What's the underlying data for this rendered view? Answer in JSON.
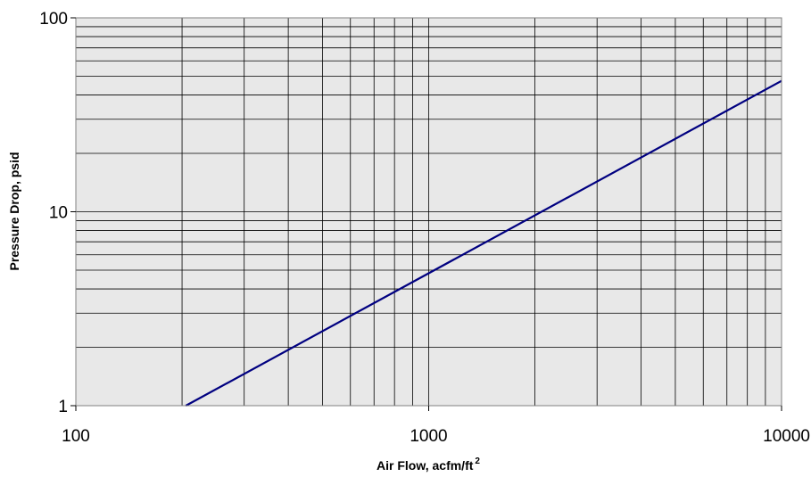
{
  "chart_data": {
    "type": "line",
    "title": "",
    "xlabel": "Air Flow, acfm/ft",
    "xlabel_superscript": "2",
    "ylabel": "Pressure Drop, psid",
    "x_scale": "log",
    "y_scale": "log",
    "xlim": [
      100,
      10000
    ],
    "ylim": [
      1,
      100
    ],
    "x_ticks": [
      "100",
      "1000",
      "10000"
    ],
    "y_ticks": [
      "1",
      "10",
      "100"
    ],
    "grid": true,
    "legend": "none",
    "colors": {
      "plot_background": "#e8e8e8",
      "gridline": "#000000",
      "series_line": "#000080"
    },
    "series": [
      {
        "x": [
          205,
          10000
        ],
        "y": [
          1,
          47.3
        ]
      }
    ]
  }
}
